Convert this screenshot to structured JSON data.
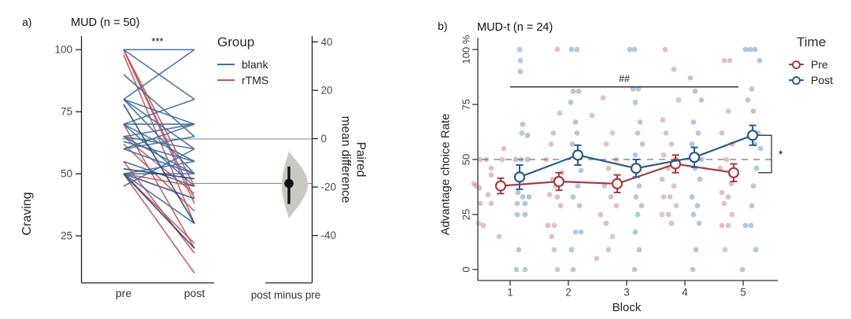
{
  "figure": {
    "background": "#ffffff"
  },
  "chart_data": [
    {
      "id": "a",
      "panel_tag": "a)",
      "type": "paired-slope-estimation",
      "title": "MUD (n = 50)",
      "ylabel": "Craving",
      "significance": "***",
      "x_categories": [
        "pre",
        "post"
      ],
      "y_ticks": [
        100,
        75,
        50,
        25
      ],
      "ylim": [
        8,
        104
      ],
      "legend": {
        "title": "Group",
        "items": [
          {
            "label": "blank",
            "color": "#3D6D9E"
          },
          {
            "label": "rTMS",
            "color": "#C05560"
          }
        ]
      },
      "dark_line_color": "#2A4470",
      "slope_lines": {
        "blank": [
          [
            100,
            100
          ],
          [
            100,
            80
          ],
          [
            90,
            65
          ],
          [
            80,
            100
          ],
          [
            80,
            70
          ],
          [
            80,
            60
          ],
          [
            80,
            50
          ],
          [
            70,
            70
          ],
          [
            70,
            80
          ],
          [
            70,
            55
          ],
          [
            70,
            45
          ],
          [
            65,
            70
          ],
          [
            65,
            60
          ],
          [
            65,
            50
          ],
          [
            63,
            55
          ],
          [
            60,
            70
          ],
          [
            60,
            65
          ],
          [
            60,
            50
          ],
          [
            55,
            45
          ],
          [
            50,
            50
          ],
          [
            50,
            55
          ],
          [
            50,
            40
          ],
          [
            50,
            30
          ],
          [
            45,
            60
          ]
        ],
        "blank_dark": [
          [
            50,
            20
          ],
          [
            78,
            30
          ],
          [
            52,
            48
          ]
        ],
        "rTMS": [
          [
            100,
            45
          ],
          [
            100,
            40
          ],
          [
            100,
            38
          ],
          [
            98,
            30
          ],
          [
            70,
            20
          ],
          [
            65,
            42
          ],
          [
            62,
            35
          ],
          [
            55,
            18
          ],
          [
            50,
            45
          ],
          [
            50,
            40
          ],
          [
            50,
            22
          ],
          [
            50,
            10
          ]
        ]
      },
      "estimation": {
        "x_label": "post minus pre",
        "axis_label": "Paired\nmean difference",
        "ticks": [
          40,
          20,
          0,
          -20,
          -40
        ],
        "mean_difference": -18.5,
        "ci": [
          -27,
          -11.5
        ],
        "violin_range": [
          -33,
          -5
        ],
        "zero_reference_craving": 64,
        "dot_color": "#111111",
        "violin_color": "#CBC8C3",
        "reference_line_color": "#8F8F8F"
      }
    },
    {
      "id": "b",
      "panel_tag": "b)",
      "type": "line-scatter",
      "title": "MUD-t (n = 24)",
      "xlabel": "Block",
      "ylabel": "Advantage choice Rate",
      "x_ticks": [
        "1",
        "2",
        "3",
        "4",
        "5"
      ],
      "y_ticks": [
        {
          "value": 100,
          "label": "100 %"
        },
        {
          "value": 75,
          "label": "75"
        },
        {
          "value": 50,
          "label": "50"
        },
        {
          "value": 25,
          "label": "25"
        },
        {
          "value": 0,
          "label": "0"
        }
      ],
      "reference_line": {
        "value": 50,
        "style": "dashed",
        "color": "#777777"
      },
      "legend": {
        "title": "Time",
        "items": [
          {
            "label": "Pre",
            "color": "#A63B47"
          },
          {
            "label": "Post",
            "color": "#2B5C8A"
          }
        ]
      },
      "series": [
        {
          "name": "Pre",
          "color": "#A63B47",
          "fill": "rgba(166,59,71,0.32)",
          "values": [
            38,
            40,
            39,
            48,
            44
          ],
          "errors": [
            3.5,
            4,
            4,
            4,
            4
          ]
        },
        {
          "name": "Post",
          "color": "#2B5C8A",
          "fill": "rgba(61,109,158,0.38)",
          "values": [
            42,
            52,
            46,
            51,
            61
          ],
          "errors": [
            5.5,
            4.5,
            4,
            4.5,
            4.5
          ]
        }
      ],
      "annotations": {
        "sig_line": {
          "label": "##",
          "y": 83,
          "x1_block": 1,
          "x2_block": 4.92
        },
        "bracket": {
          "label": "*",
          "block": 5,
          "from_series": "Post",
          "to_series": "Pre"
        }
      },
      "scatter": [
        [
          1,
          0,
          55,
          -8
        ],
        [
          1,
          0,
          50,
          -38
        ],
        [
          1,
          0,
          50,
          -30
        ],
        [
          1,
          0,
          50,
          -10
        ],
        [
          1,
          0,
          46,
          -24
        ],
        [
          1,
          0,
          43,
          -24
        ],
        [
          1,
          0,
          39,
          -46
        ],
        [
          1,
          0,
          38,
          -43
        ],
        [
          1,
          0,
          37,
          -39
        ],
        [
          1,
          0,
          37,
          -12
        ],
        [
          1,
          0,
          34,
          -28
        ],
        [
          1,
          0,
          30,
          -38
        ],
        [
          1,
          0,
          30,
          -24
        ],
        [
          1,
          0,
          21,
          -40
        ],
        [
          1,
          0,
          20,
          -34
        ],
        [
          1,
          0,
          15,
          -14
        ],
        [
          1,
          1,
          100,
          12
        ],
        [
          1,
          1,
          95,
          13
        ],
        [
          1,
          1,
          90,
          13
        ],
        [
          1,
          1,
          66,
          16
        ],
        [
          1,
          1,
          62,
          15
        ],
        [
          1,
          1,
          61,
          22
        ],
        [
          1,
          1,
          50,
          7
        ],
        [
          1,
          1,
          50,
          14
        ],
        [
          1,
          1,
          50,
          22
        ],
        [
          1,
          1,
          35,
          10
        ],
        [
          1,
          1,
          33,
          16
        ],
        [
          1,
          1,
          33,
          24
        ],
        [
          1,
          1,
          30,
          9
        ],
        [
          1,
          1,
          30,
          19
        ],
        [
          1,
          1,
          25,
          9
        ],
        [
          1,
          1,
          25,
          19
        ],
        [
          1,
          1,
          9,
          11
        ],
        [
          1,
          1,
          0,
          8
        ],
        [
          1,
          1,
          0,
          19
        ],
        [
          2,
          0,
          100,
          -14
        ],
        [
          2,
          0,
          71,
          -11
        ],
        [
          2,
          0,
          62,
          -19
        ],
        [
          2,
          0,
          57,
          -22
        ],
        [
          2,
          0,
          50,
          -28
        ],
        [
          2,
          0,
          44,
          -8
        ],
        [
          2,
          0,
          41,
          -20
        ],
        [
          2,
          0,
          38,
          -16
        ],
        [
          2,
          0,
          34,
          -24
        ],
        [
          2,
          0,
          33,
          -14
        ],
        [
          2,
          0,
          29,
          -10
        ],
        [
          2,
          0,
          20,
          -26
        ],
        [
          2,
          0,
          20,
          -18
        ],
        [
          2,
          0,
          15,
          -21
        ],
        [
          2,
          0,
          9,
          -18
        ],
        [
          2,
          0,
          0,
          -14
        ],
        [
          2,
          1,
          100,
          4
        ],
        [
          2,
          1,
          100,
          11
        ],
        [
          2,
          1,
          81,
          6
        ],
        [
          2,
          1,
          81,
          13
        ],
        [
          2,
          1,
          76,
          3
        ],
        [
          2,
          1,
          67,
          9
        ],
        [
          2,
          1,
          62,
          11
        ],
        [
          2,
          1,
          57,
          5
        ],
        [
          2,
          1,
          52,
          14
        ],
        [
          2,
          1,
          45,
          16
        ],
        [
          2,
          1,
          38,
          12
        ],
        [
          2,
          1,
          33,
          6
        ],
        [
          2,
          1,
          29,
          14
        ],
        [
          2,
          1,
          17,
          9
        ],
        [
          2,
          1,
          17,
          16
        ],
        [
          2,
          1,
          9,
          4
        ],
        [
          2,
          1,
          0,
          6
        ],
        [
          3,
          0,
          78,
          -30
        ],
        [
          3,
          0,
          70,
          -44
        ],
        [
          3,
          0,
          62,
          -18
        ],
        [
          3,
          0,
          57,
          -26
        ],
        [
          3,
          0,
          50,
          -13
        ],
        [
          3,
          0,
          46,
          -23
        ],
        [
          3,
          0,
          41,
          -11
        ],
        [
          3,
          0,
          38,
          -28
        ],
        [
          3,
          0,
          33,
          -20
        ],
        [
          3,
          0,
          29,
          -13
        ],
        [
          3,
          0,
          25,
          -33
        ],
        [
          3,
          0,
          21,
          -26
        ],
        [
          3,
          0,
          15,
          -18
        ],
        [
          3,
          0,
          9,
          -23
        ],
        [
          3,
          0,
          5,
          -38
        ],
        [
          3,
          1,
          100,
          4
        ],
        [
          3,
          1,
          100,
          10
        ],
        [
          3,
          1,
          82,
          8
        ],
        [
          3,
          1,
          82,
          15
        ],
        [
          3,
          1,
          76,
          11
        ],
        [
          3,
          1,
          67,
          17
        ],
        [
          3,
          1,
          62,
          14
        ],
        [
          3,
          1,
          57,
          20
        ],
        [
          3,
          1,
          52,
          11
        ],
        [
          3,
          1,
          46,
          10
        ],
        [
          3,
          1,
          38,
          16
        ],
        [
          3,
          1,
          33,
          12
        ],
        [
          3,
          1,
          29,
          19
        ],
        [
          3,
          1,
          25,
          14
        ],
        [
          3,
          1,
          17,
          11
        ],
        [
          3,
          1,
          9,
          16
        ],
        [
          3,
          1,
          0,
          10
        ],
        [
          4,
          0,
          100,
          -25
        ],
        [
          4,
          0,
          91,
          -14
        ],
        [
          4,
          0,
          77,
          -8
        ],
        [
          4,
          0,
          68,
          -28
        ],
        [
          4,
          0,
          62,
          -24
        ],
        [
          4,
          0,
          57,
          -17
        ],
        [
          4,
          0,
          52,
          -27
        ],
        [
          4,
          0,
          50,
          -11
        ],
        [
          4,
          0,
          46,
          -21
        ],
        [
          4,
          0,
          41,
          -29
        ],
        [
          4,
          0,
          38,
          -14
        ],
        [
          4,
          0,
          33,
          -27
        ],
        [
          4,
          0,
          33,
          -19
        ],
        [
          4,
          0,
          29,
          -11
        ],
        [
          4,
          0,
          25,
          -29
        ],
        [
          4,
          0,
          25,
          -21
        ],
        [
          4,
          0,
          21,
          -17
        ],
        [
          4,
          1,
          87,
          7
        ],
        [
          4,
          1,
          81,
          13
        ],
        [
          4,
          1,
          77,
          21
        ],
        [
          4,
          1,
          67,
          11
        ],
        [
          4,
          1,
          62,
          17
        ],
        [
          4,
          1,
          57,
          9
        ],
        [
          4,
          1,
          52,
          15
        ],
        [
          4,
          1,
          50,
          21
        ],
        [
          4,
          1,
          46,
          13
        ],
        [
          4,
          1,
          41,
          19
        ],
        [
          4,
          1,
          33,
          9
        ],
        [
          4,
          1,
          29,
          16
        ],
        [
          4,
          1,
          25,
          11
        ],
        [
          4,
          1,
          21,
          18
        ],
        [
          4,
          1,
          9,
          14
        ],
        [
          4,
          1,
          0,
          10
        ],
        [
          5,
          0,
          95,
          -24
        ],
        [
          5,
          0,
          95,
          -17
        ],
        [
          5,
          0,
          72,
          -19
        ],
        [
          5,
          0,
          62,
          -27
        ],
        [
          5,
          0,
          57,
          -14
        ],
        [
          5,
          0,
          50,
          -21
        ],
        [
          5,
          0,
          46,
          -29
        ],
        [
          5,
          0,
          39,
          -15
        ],
        [
          5,
          0,
          35,
          -27
        ],
        [
          5,
          0,
          33,
          -19
        ],
        [
          5,
          0,
          30,
          -24
        ],
        [
          5,
          0,
          25,
          -14
        ],
        [
          5,
          0,
          20,
          -27
        ],
        [
          5,
          0,
          20,
          -19
        ],
        [
          5,
          0,
          9,
          -23
        ],
        [
          5,
          1,
          100,
          3
        ],
        [
          5,
          1,
          100,
          9
        ],
        [
          5,
          1,
          100,
          15
        ],
        [
          5,
          1,
          95,
          21
        ],
        [
          5,
          1,
          82,
          11
        ],
        [
          5,
          1,
          77,
          6
        ],
        [
          5,
          1,
          72,
          13
        ],
        [
          5,
          1,
          62,
          19
        ],
        [
          5,
          1,
          57,
          15
        ],
        [
          5,
          1,
          55,
          22
        ],
        [
          5,
          1,
          46,
          17
        ],
        [
          5,
          1,
          38,
          13
        ],
        [
          5,
          1,
          29,
          11
        ],
        [
          5,
          1,
          20,
          3
        ],
        [
          5,
          1,
          20,
          10
        ],
        [
          5,
          1,
          9,
          16
        ],
        [
          5,
          1,
          0,
          -1
        ]
      ]
    }
  ]
}
